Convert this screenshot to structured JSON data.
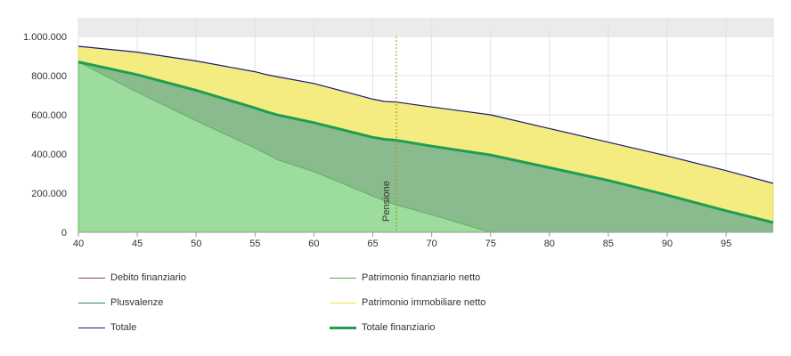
{
  "chart_data": {
    "type": "area",
    "title": "",
    "xlabel": "",
    "ylabel": "",
    "xlim": [
      40,
      99
    ],
    "ylim": [
      0,
      1000000
    ],
    "x_ticks": [
      "40",
      "45",
      "50",
      "55",
      "60",
      "65",
      "70",
      "75",
      "80",
      "85",
      "90",
      "95"
    ],
    "y_ticks": [
      "0",
      "200.000",
      "400.000",
      "600.000",
      "800.000",
      "1.000.000"
    ],
    "grid": true,
    "legend_position": "bottom",
    "annotation": {
      "label": "Pensione",
      "x": 67,
      "color": "#b8860b"
    },
    "x": [
      40,
      45,
      50,
      55,
      56,
      57,
      60,
      65,
      66,
      67,
      70,
      75,
      80,
      85,
      90,
      95,
      99
    ],
    "series": [
      {
        "name": "Debito finanziario",
        "color": "#8e3c6e",
        "values": [
          0,
          0,
          0,
          0,
          0,
          0,
          0,
          0,
          0,
          0,
          0,
          0,
          0,
          0,
          0,
          0,
          0
        ]
      },
      {
        "name": "Patrimonio finanziario netto",
        "color": "#4caf50",
        "values": [
          870000,
          715000,
          570000,
          430000,
          400000,
          368000,
          310000,
          185000,
          160000,
          140000,
          90000,
          0,
          0,
          0,
          0,
          0,
          0
        ]
      },
      {
        "name": "Plusvalenze",
        "color": "#2e8b57",
        "values": [
          0,
          90000,
          155000,
          205000,
          215000,
          230000,
          250000,
          300000,
          315000,
          330000,
          350000,
          395000,
          330000,
          265000,
          190000,
          110000,
          50000
        ]
      },
      {
        "name": "Patrimonio immobiliare netto",
        "color": "#f0e040",
        "values": [
          80000,
          115000,
          150000,
          185000,
          190000,
          195000,
          200000,
          195000,
          193000,
          195000,
          200000,
          205000,
          200000,
          195000,
          200000,
          205000,
          200000
        ]
      },
      {
        "name": "Totale",
        "color": "#1a1a7a",
        "values": [
          950000,
          920000,
          875000,
          820000,
          805000,
          793000,
          760000,
          680000,
          668000,
          665000,
          640000,
          600000,
          530000,
          460000,
          390000,
          315000,
          250000
        ]
      },
      {
        "name": "Totale finanziario",
        "color": "#1e9e4e",
        "values": [
          870000,
          805000,
          725000,
          635000,
          615000,
          598000,
          560000,
          485000,
          475000,
          470000,
          440000,
          395000,
          330000,
          265000,
          190000,
          110000,
          50000
        ]
      }
    ]
  }
}
